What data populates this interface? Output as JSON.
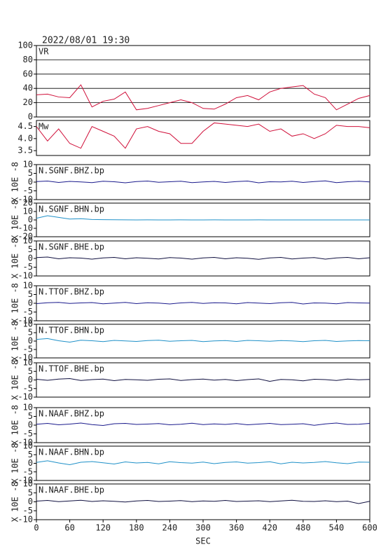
{
  "title": "2022/08/01 19:30",
  "chart_data": [
    {
      "type": "line",
      "label": "VR",
      "x": [
        0,
        20,
        40,
        60,
        80,
        100,
        120,
        140,
        160,
        180,
        200,
        220,
        240,
        260,
        280,
        300,
        320,
        340,
        360,
        380,
        400,
        420,
        440,
        460,
        480,
        500,
        520,
        540,
        560,
        580,
        600
      ],
      "values": [
        31,
        32,
        28,
        27,
        45,
        14,
        22,
        25,
        35,
        10,
        12,
        16,
        20,
        24,
        20,
        12,
        11,
        18,
        27,
        30,
        24,
        35,
        40,
        42,
        44,
        32,
        27,
        10,
        18,
        26,
        30
      ],
      "color": "#d0103a",
      "xlim": [
        0,
        600
      ],
      "ylim": [
        0,
        100
      ],
      "yticks": [
        0,
        20,
        40,
        60,
        80,
        100
      ],
      "grid": true
    },
    {
      "type": "line",
      "label": "Mw",
      "x": [
        0,
        20,
        40,
        60,
        80,
        100,
        120,
        140,
        160,
        180,
        200,
        220,
        240,
        260,
        280,
        300,
        320,
        340,
        360,
        380,
        400,
        420,
        440,
        460,
        480,
        500,
        520,
        540,
        560,
        580,
        600
      ],
      "values": [
        4.5,
        3.9,
        4.4,
        3.8,
        3.6,
        4.5,
        4.3,
        4.1,
        3.6,
        4.4,
        4.5,
        4.3,
        4.2,
        3.8,
        3.8,
        4.3,
        4.65,
        4.6,
        4.55,
        4.5,
        4.6,
        4.3,
        4.4,
        4.1,
        4.2,
        4.0,
        4.2,
        4.55,
        4.5,
        4.5,
        4.45
      ],
      "color": "#d0103a",
      "xlim": [
        0,
        600
      ],
      "ylim": [
        3.3,
        4.75
      ],
      "yticks": [
        3.5,
        {
          "value": 4,
          "label": "4.0"
        },
        4.5
      ],
      "grid": false
    },
    {
      "type": "line",
      "label": "N.SGNF.BHZ.bp",
      "ylabel": "X 10E -8",
      "x": [
        0,
        20,
        40,
        60,
        80,
        100,
        120,
        140,
        160,
        180,
        200,
        220,
        240,
        260,
        280,
        300,
        320,
        340,
        360,
        380,
        400,
        420,
        440,
        460,
        480,
        500,
        520,
        540,
        560,
        580,
        600
      ],
      "values": [
        0.3,
        0.6,
        -0.2,
        0.4,
        0.1,
        -0.3,
        0.5,
        0.2,
        -0.4,
        0.3,
        0.6,
        -0.1,
        0.2,
        0.5,
        -0.3,
        0.1,
        0.4,
        -0.2,
        0.3,
        0.6,
        -0.4,
        0.2,
        0.1,
        0.5,
        -0.2,
        0.3,
        0.7,
        -0.3,
        0.2,
        0.5,
        0.1
      ],
      "color": "#1a1a8c",
      "xlim": [
        0,
        600
      ],
      "ylim": [
        -10,
        10
      ],
      "yticks": [
        -10,
        -5,
        0,
        5,
        10
      ],
      "grid": false
    },
    {
      "type": "line",
      "label": "N.SGNF.BHN.bp",
      "ylabel": "X 10E -8",
      "x": [
        0,
        20,
        40,
        60,
        80,
        100,
        120,
        140,
        160,
        180,
        200,
        220,
        240,
        260,
        280,
        300,
        320,
        340,
        360,
        380,
        400,
        420,
        440,
        460,
        480,
        500,
        520,
        540,
        560,
        580,
        600
      ],
      "values": [
        2,
        5,
        3,
        1,
        1.5,
        0.5,
        0.3,
        0.2,
        0.1,
        0,
        0.1,
        0,
        0,
        0.1,
        0,
        0,
        0.1,
        0,
        0,
        0,
        0.1,
        0,
        0,
        0,
        0,
        0,
        0,
        0,
        0,
        0,
        0
      ],
      "color": "#1e90c8",
      "xlim": [
        0,
        600
      ],
      "ylim": [
        -20,
        20
      ],
      "yticks": [
        -20,
        -10,
        0,
        10,
        20
      ],
      "grid": false
    },
    {
      "type": "line",
      "label": "N.SGNF.BHE.bp",
      "ylabel": "X 10E -8",
      "x": [
        0,
        20,
        40,
        60,
        80,
        100,
        120,
        140,
        160,
        180,
        200,
        220,
        240,
        260,
        280,
        300,
        320,
        340,
        360,
        380,
        400,
        420,
        440,
        460,
        480,
        500,
        520,
        540,
        560,
        580,
        600
      ],
      "values": [
        0.5,
        0.8,
        -0.2,
        0.4,
        0.2,
        -0.4,
        0.3,
        0.6,
        -0.2,
        0.4,
        0.1,
        -0.3,
        0.5,
        0.2,
        -0.4,
        0.3,
        0.6,
        -0.2,
        0.4,
        0.1,
        -0.5,
        0.3,
        0.6,
        -0.3,
        0.2,
        0.5,
        -0.4,
        0.3,
        0.6,
        -0.2,
        0.4
      ],
      "color": "#101040",
      "xlim": [
        0,
        600
      ],
      "ylim": [
        -10,
        10
      ],
      "yticks": [
        -10,
        -5,
        0,
        5,
        10
      ],
      "grid": false
    },
    {
      "type": "line",
      "label": "N.TTOF.BHZ.bp",
      "ylabel": "X 10E -8",
      "x": [
        0,
        20,
        40,
        60,
        80,
        100,
        120,
        140,
        160,
        180,
        200,
        220,
        240,
        260,
        280,
        300,
        320,
        340,
        360,
        380,
        400,
        420,
        440,
        460,
        480,
        500,
        520,
        540,
        560,
        580,
        600
      ],
      "values": [
        -0.2,
        0.3,
        0.5,
        -0.1,
        0.2,
        0.4,
        -0.3,
        0.1,
        0.5,
        -0.2,
        0.3,
        0.1,
        -0.4,
        0.2,
        0.5,
        -0.1,
        0.3,
        0.2,
        -0.3,
        0.4,
        0.1,
        -0.2,
        0.3,
        0.5,
        -0.4,
        0.2,
        0.1,
        -0.3,
        0.4,
        0.2,
        0.1
      ],
      "color": "#1a1a8c",
      "xlim": [
        0,
        600
      ],
      "ylim": [
        -10,
        10
      ],
      "yticks": [
        -10,
        -5,
        0,
        5,
        10
      ],
      "grid": false
    },
    {
      "type": "line",
      "label": "N.TTOF.BHN.bp",
      "ylabel": "X 10E -8",
      "x": [
        0,
        20,
        40,
        60,
        80,
        100,
        120,
        140,
        160,
        180,
        200,
        220,
        240,
        260,
        280,
        300,
        320,
        340,
        360,
        380,
        400,
        420,
        440,
        460,
        480,
        500,
        520,
        540,
        560,
        580,
        600
      ],
      "values": [
        1,
        1.5,
        0.2,
        -0.6,
        0.5,
        0.2,
        -0.3,
        0.4,
        0.1,
        -0.2,
        0.3,
        0.5,
        -0.1,
        0.2,
        0.4,
        -0.3,
        0.1,
        0.3,
        -0.2,
        0.4,
        0.2,
        -0.1,
        0.3,
        0.1,
        -0.3,
        0.2,
        0.4,
        -0.2,
        0.1,
        0.3,
        0.2
      ],
      "color": "#1e90c8",
      "xlim": [
        0,
        600
      ],
      "ylim": [
        -10,
        10
      ],
      "yticks": [
        -10,
        -5,
        0,
        5,
        10
      ],
      "grid": false
    },
    {
      "type": "line",
      "label": "N.TTOF.BHE.bp",
      "ylabel": "X 10E -8",
      "x": [
        0,
        20,
        40,
        60,
        80,
        100,
        120,
        140,
        160,
        180,
        200,
        220,
        240,
        260,
        280,
        300,
        320,
        340,
        360,
        380,
        400,
        420,
        440,
        460,
        480,
        500,
        520,
        540,
        560,
        580,
        600
      ],
      "values": [
        0.4,
        -0.2,
        0.5,
        0.8,
        -0.3,
        0.2,
        0.5,
        -0.4,
        0.3,
        0.1,
        -0.2,
        0.4,
        0.6,
        -0.3,
        0.2,
        0.5,
        -0.1,
        0.3,
        -0.4,
        0.2,
        0.6,
        -0.8,
        0.3,
        0.1,
        -0.5,
        0.4,
        0.2,
        -0.3,
        0.5,
        0.1,
        0.3
      ],
      "color": "#101040",
      "xlim": [
        0,
        600
      ],
      "ylim": [
        -10,
        10
      ],
      "yticks": [
        -10,
        -5,
        0,
        5,
        10
      ],
      "grid": false
    },
    {
      "type": "line",
      "label": "N.NAAF.BHZ.bp",
      "ylabel": "X 10E -8",
      "x": [
        0,
        20,
        40,
        60,
        80,
        100,
        120,
        140,
        160,
        180,
        200,
        220,
        240,
        260,
        280,
        300,
        320,
        340,
        360,
        380,
        400,
        420,
        440,
        460,
        480,
        500,
        520,
        540,
        560,
        580,
        600
      ],
      "values": [
        0.5,
        1,
        0.2,
        0.6,
        1.2,
        0.3,
        -0.2,
        0.8,
        1,
        0.4,
        0.6,
        0.9,
        0.2,
        0.5,
        1.1,
        0.3,
        0.7,
        0.4,
        0.9,
        0.2,
        0.6,
        1,
        0.3,
        0.5,
        0.8,
        -0.1,
        0.7,
        1.2,
        0.4,
        0.5,
        1
      ],
      "color": "#1a1a8c",
      "xlim": [
        0,
        600
      ],
      "ylim": [
        -10,
        10
      ],
      "yticks": [
        -10,
        -5,
        0,
        5,
        10
      ],
      "grid": false
    },
    {
      "type": "line",
      "label": "N.NAAF.BHN.bp",
      "ylabel": "X 10E -8",
      "x": [
        0,
        20,
        40,
        60,
        80,
        100,
        120,
        140,
        160,
        180,
        200,
        220,
        240,
        260,
        280,
        300,
        320,
        340,
        360,
        380,
        400,
        420,
        440,
        460,
        480,
        500,
        520,
        540,
        560,
        580,
        600
      ],
      "values": [
        0.5,
        1.5,
        0.2,
        -0.8,
        0.6,
        1,
        0.3,
        -0.4,
        0.8,
        0.2,
        0.5,
        -0.3,
        0.9,
        0.4,
        0.1,
        0.7,
        -0.2,
        0.5,
        0.8,
        0.1,
        0.4,
        0.9,
        -0.3,
        0.6,
        0.2,
        0.5,
        1,
        0.3,
        -0.2,
        0.7,
        0.6
      ],
      "color": "#1e90c8",
      "xlim": [
        0,
        600
      ],
      "ylim": [
        -10,
        10
      ],
      "yticks": [
        -10,
        -5,
        0,
        5,
        10
      ],
      "grid": false
    },
    {
      "type": "line",
      "label": "N.NAAF.BHE.bp",
      "ylabel": "X 10E -8",
      "xlabel": "SEC",
      "x": [
        0,
        20,
        40,
        60,
        80,
        100,
        120,
        140,
        160,
        180,
        200,
        220,
        240,
        260,
        280,
        300,
        320,
        340,
        360,
        380,
        400,
        420,
        440,
        460,
        480,
        500,
        520,
        540,
        560,
        580,
        600
      ],
      "values": [
        0.4,
        0.8,
        0.1,
        0.5,
        0.9,
        0.2,
        0.6,
        0.3,
        -0.1,
        0.5,
        0.8,
        0.2,
        0.4,
        0.7,
        0.1,
        0.5,
        0.3,
        0.8,
        0.2,
        0.4,
        0.6,
        0.1,
        0.5,
        0.9,
        0.3,
        0.2,
        0.6,
        0.1,
        0.4,
        -1,
        0.3
      ],
      "color": "#101040",
      "xlim": [
        0,
        600
      ],
      "ylim": [
        -10,
        10
      ],
      "yticks": [
        -10,
        -5,
        0,
        5,
        10
      ],
      "xticks": [
        0,
        60,
        120,
        180,
        240,
        300,
        360,
        420,
        480,
        540,
        600
      ],
      "grid": false
    }
  ]
}
